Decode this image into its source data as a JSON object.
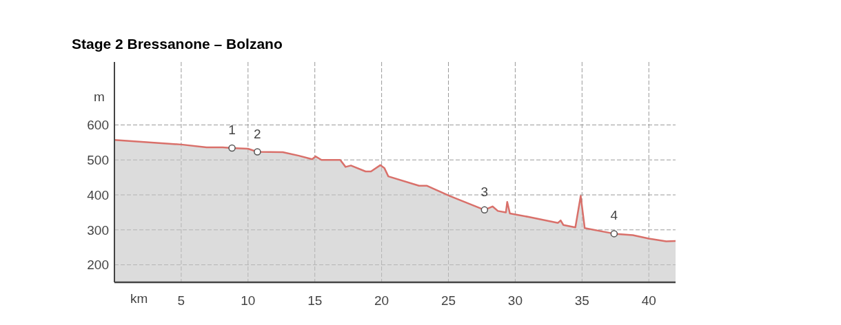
{
  "chart_data": {
    "type": "area",
    "title": "Stage 2 Bressanone – Bolzano",
    "xlabel": "km",
    "ylabel": "m",
    "xlim": [
      0,
      42
    ],
    "xticks": [
      5,
      10,
      15,
      20,
      25,
      30,
      35,
      40
    ],
    "ylim": [
      150,
      780
    ],
    "yticks": [
      200,
      300,
      400,
      500,
      600
    ],
    "grid": true,
    "legend": false,
    "series": [
      {
        "color": "#d9706a",
        "x": [
          0,
          5,
          6.9,
          8.1,
          8.8,
          10,
          10.7,
          12.6,
          13.8,
          14.8,
          15.05,
          15.5,
          16.9,
          17.3,
          17.7,
          18.8,
          19.2,
          19.9,
          20.2,
          20.5,
          22.8,
          23.4,
          25.1,
          27.7,
          28.3,
          28.7,
          29.3,
          29.4,
          29.6,
          31,
          33.2,
          33.4,
          33.6,
          34.5,
          34.9,
          35.2,
          37.4,
          38.8,
          40,
          41.3,
          42
        ],
        "values": [
          557,
          544,
          536,
          536,
          534,
          532,
          523,
          522,
          512,
          502,
          510,
          500,
          500,
          480,
          484,
          467,
          467,
          485,
          477,
          453,
          426,
          426,
          397,
          357,
          367,
          354,
          350,
          380,
          347,
          337,
          320,
          327,
          314,
          307,
          397,
          305,
          289,
          285,
          275,
          267,
          268
        ]
      },
      {
        "type": "scatter",
        "color": "#ffffff",
        "marker": "circle",
        "x": [
          8.8,
          10.7,
          27.7,
          37.4
        ],
        "values": [
          534,
          523,
          357,
          289
        ]
      }
    ],
    "annotations": [
      {
        "text": "1",
        "x": 8.8,
        "y": 534
      },
      {
        "text": "2",
        "x": 10.7,
        "y": 523
      },
      {
        "text": "3",
        "x": 27.7,
        "y": 357
      },
      {
        "text": "4",
        "x": 37.4,
        "y": 289
      }
    ]
  }
}
